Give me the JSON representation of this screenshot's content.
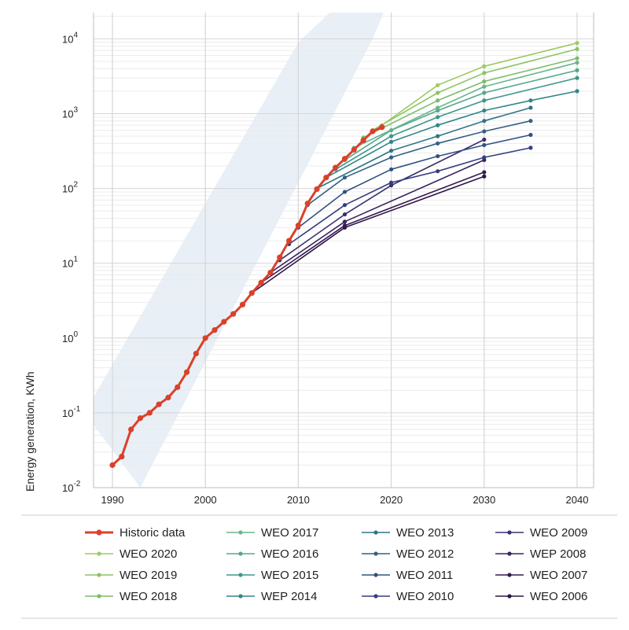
{
  "chart_data": {
    "type": "line",
    "xlabel": "",
    "ylabel": "Energy generation, KWh",
    "yscale": "log",
    "xlim": [
      1988,
      2042
    ],
    "ylim": [
      0.01,
      20000
    ],
    "x_ticks": [
      1990,
      2000,
      2010,
      2020,
      2030,
      2040
    ],
    "y_ticks": [
      {
        "value": 0.01,
        "base": "10",
        "exp": "-2"
      },
      {
        "value": 0.1,
        "base": "10",
        "exp": "-1"
      },
      {
        "value": 1,
        "base": "10",
        "exp": "0"
      },
      {
        "value": 10,
        "base": "10",
        "exp": "1"
      },
      {
        "value": 100,
        "base": "10",
        "exp": "2"
      },
      {
        "value": 1000,
        "base": "10",
        "exp": "3"
      },
      {
        "value": 10000,
        "base": "10",
        "exp": "4"
      }
    ],
    "trend_band": {
      "lower": [
        [
          1993,
          0.01
        ],
        [
          2018,
          10000
        ]
      ],
      "upper": [
        [
          1987,
          0.1
        ],
        [
          2010,
          9000
        ],
        [
          2023,
          300000
        ]
      ]
    },
    "historic": {
      "name": "Historic data",
      "color": "#d9412b",
      "x": [
        1990,
        1991,
        1992,
        1993,
        1994,
        1995,
        1996,
        1997,
        1998,
        1999,
        2000,
        2001,
        2002,
        2003,
        2004,
        2005,
        2006,
        2007,
        2008,
        2009,
        2010,
        2011,
        2012,
        2013,
        2014,
        2015,
        2016,
        2017,
        2018,
        2019
      ],
      "y": [
        0.02,
        0.026,
        0.06,
        0.085,
        0.1,
        0.13,
        0.16,
        0.22,
        0.35,
        0.62,
        1.0,
        1.28,
        1.65,
        2.1,
        2.8,
        4.0,
        5.5,
        7.5,
        12,
        20,
        32,
        63,
        98,
        140,
        190,
        250,
        330,
        440,
        580,
        660
      ]
    },
    "series": [
      {
        "name": "WEO 2020",
        "color": "#9ecb62",
        "x": [
          2019,
          2025,
          2030,
          2040
        ],
        "y": [
          700,
          2400,
          4300,
          8800
        ]
      },
      {
        "name": "WEO 2019",
        "color": "#8cc466",
        "x": [
          2018,
          2025,
          2030,
          2040
        ],
        "y": [
          600,
          1900,
          3500,
          7300
        ]
      },
      {
        "name": "WEO 2018",
        "color": "#7bbd6b",
        "x": [
          2017,
          2025,
          2030,
          2040
        ],
        "y": [
          480,
          1500,
          2700,
          5500
        ]
      },
      {
        "name": "WEO 2017",
        "color": "#6ab58c",
        "x": [
          2016,
          2025,
          2030,
          2040
        ],
        "y": [
          350,
          1200,
          2300,
          4800
        ]
      },
      {
        "name": "WEO 2016",
        "color": "#52a88b",
        "x": [
          2015,
          2020,
          2025,
          2030,
          2040
        ],
        "y": [
          240,
          600,
          1100,
          1900,
          3800
        ]
      },
      {
        "name": "WEO 2015",
        "color": "#3d9789",
        "x": [
          2014,
          2020,
          2025,
          2030,
          2040
        ],
        "y": [
          180,
          500,
          900,
          1500,
          3000
        ]
      },
      {
        "name": "WEP 2014",
        "color": "#338587",
        "x": [
          2013,
          2020,
          2025,
          2030,
          2035,
          2040
        ],
        "y": [
          140,
          420,
          700,
          1100,
          1500,
          2000
        ]
      },
      {
        "name": "WEO 2013",
        "color": "#2f7486",
        "x": [
          2012,
          2020,
          2025,
          2030,
          2035
        ],
        "y": [
          100,
          320,
          500,
          800,
          1200
        ]
      },
      {
        "name": "WEO 2012",
        "color": "#326184",
        "x": [
          2011,
          2015,
          2020,
          2025,
          2030,
          2035
        ],
        "y": [
          60,
          140,
          260,
          400,
          580,
          800
        ]
      },
      {
        "name": "WEO 2011",
        "color": "#345082",
        "x": [
          2010,
          2015,
          2020,
          2025,
          2030,
          2035
        ],
        "y": [
          30,
          90,
          180,
          270,
          380,
          520
        ]
      },
      {
        "name": "WEO 2010",
        "color": "#373f7c",
        "x": [
          2009,
          2015,
          2020,
          2025,
          2030,
          2035
        ],
        "y": [
          18,
          60,
          120,
          170,
          260,
          350
        ]
      },
      {
        "name": "WEO 2009",
        "color": "#39306f",
        "x": [
          2008,
          2015,
          2020,
          2030
        ],
        "y": [
          11,
          45,
          110,
          450
        ]
      },
      {
        "name": "WEP 2008",
        "color": "#382461",
        "x": [
          2007,
          2015,
          2030
        ],
        "y": [
          7.5,
          36,
          240
        ]
      },
      {
        "name": "WEO 2007",
        "color": "#341a52",
        "x": [
          2006,
          2015,
          2030
        ],
        "y": [
          5.5,
          32,
          165
        ]
      },
      {
        "name": "WEO 2006",
        "color": "#2f1544",
        "x": [
          2005,
          2015,
          2030
        ],
        "y": [
          4.0,
          30,
          145
        ]
      }
    ]
  },
  "legend": {
    "historic": {
      "label": "Historic data",
      "color": "#d9412b"
    },
    "items": [
      {
        "label": "WEO 2020",
        "color": "#9ecb62"
      },
      {
        "label": "WEO 2019",
        "color": "#8cc466"
      },
      {
        "label": "WEO 2018",
        "color": "#7bbd6b"
      },
      {
        "label": "WEO 2017",
        "color": "#6ab58c"
      },
      {
        "label": "WEO 2016",
        "color": "#52a88b"
      },
      {
        "label": "WEO 2015",
        "color": "#3d9789"
      },
      {
        "label": "WEP 2014",
        "color": "#338587"
      },
      {
        "label": "WEO 2013",
        "color": "#2f7486"
      },
      {
        "label": "WEO 2012",
        "color": "#326184"
      },
      {
        "label": "WEO 2011",
        "color": "#345082"
      },
      {
        "label": "WEO 2010",
        "color": "#373f7c"
      },
      {
        "label": "WEO 2009",
        "color": "#39306f"
      },
      {
        "label": "WEP 2008",
        "color": "#382461"
      },
      {
        "label": "WEO 2007",
        "color": "#341a52"
      },
      {
        "label": "WEO 2006",
        "color": "#2f1544"
      }
    ]
  },
  "colors": {
    "band": "#e8eff6",
    "grid_major": "#d6d6d6",
    "grid_minor": "#ececec",
    "axis": "#bdbdbd"
  }
}
